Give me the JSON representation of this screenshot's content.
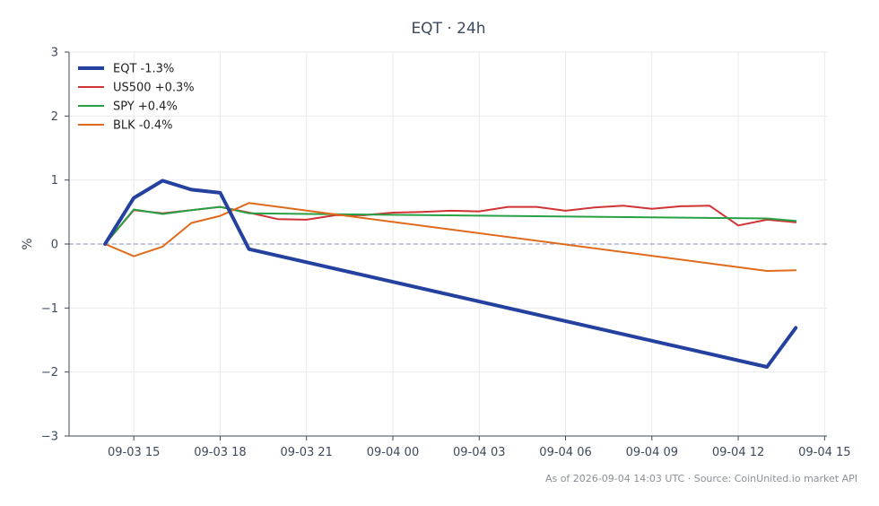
{
  "chart_data": {
    "type": "line",
    "title": "EQT · 24h",
    "xlabel": "",
    "ylabel": "%",
    "ylim": [
      -3,
      3
    ],
    "xlim": [
      "2026-09-03 12:45",
      "2026-09-04 15:05"
    ],
    "x_ticks": [
      {
        "value": "2026-09-03 15:00",
        "label": "09-03 15"
      },
      {
        "value": "2026-09-03 18:00",
        "label": "09-03 18"
      },
      {
        "value": "2026-09-03 21:00",
        "label": "09-03 21"
      },
      {
        "value": "2026-09-04 00:00",
        "label": "09-04 00"
      },
      {
        "value": "2026-09-04 03:00",
        "label": "09-04 03"
      },
      {
        "value": "2026-09-04 06:00",
        "label": "09-04 06"
      },
      {
        "value": "2026-09-04 09:00",
        "label": "09-04 09"
      },
      {
        "value": "2026-09-04 12:00",
        "label": "09-04 12"
      },
      {
        "value": "2026-09-04 15:00",
        "label": "09-04 15"
      }
    ],
    "y_ticks": [
      {
        "value": 3,
        "label": "3"
      },
      {
        "value": 2,
        "label": "2"
      },
      {
        "value": 1,
        "label": "1"
      },
      {
        "value": 0,
        "label": "0"
      },
      {
        "value": -1,
        "label": "−1"
      },
      {
        "value": -2,
        "label": "−2"
      },
      {
        "value": -3,
        "label": "−3"
      }
    ],
    "grid": true,
    "baseline": 0,
    "legend_position": "top-left",
    "series": [
      {
        "name": "EQT -1.3%",
        "color": "#2441a0",
        "line_width": 4,
        "points": [
          {
            "x": "2026-09-03 14:00",
            "y": 0.0
          },
          {
            "x": "2026-09-03 15:00",
            "y": 0.72
          },
          {
            "x": "2026-09-03 16:00",
            "y": 0.99
          },
          {
            "x": "2026-09-03 17:00",
            "y": 0.85
          },
          {
            "x": "2026-09-03 18:00",
            "y": 0.8
          },
          {
            "x": "2026-09-03 19:00",
            "y": -0.08
          },
          {
            "x": "2026-09-04 13:00",
            "y": -1.92
          },
          {
            "x": "2026-09-04 14:00",
            "y": -1.31
          }
        ]
      },
      {
        "name": "US500 +0.3%",
        "color": "#d03434",
        "line_width": 2,
        "points": [
          {
            "x": "2026-09-03 14:00",
            "y": 0.0
          },
          {
            "x": "2026-09-03 15:00",
            "y": 0.53
          },
          {
            "x": "2026-09-03 16:00",
            "y": 0.48
          },
          {
            "x": "2026-09-03 17:00",
            "y": 0.53
          },
          {
            "x": "2026-09-03 18:00",
            "y": 0.58
          },
          {
            "x": "2026-09-03 19:00",
            "y": 0.49
          },
          {
            "x": "2026-09-03 20:00",
            "y": 0.39
          },
          {
            "x": "2026-09-03 21:00",
            "y": 0.38
          },
          {
            "x": "2026-09-03 22:00",
            "y": 0.45
          },
          {
            "x": "2026-09-03 23:00",
            "y": 0.45
          },
          {
            "x": "2026-09-04 00:00",
            "y": 0.49
          },
          {
            "x": "2026-09-04 01:00",
            "y": 0.5
          },
          {
            "x": "2026-09-04 02:00",
            "y": 0.52
          },
          {
            "x": "2026-09-04 03:00",
            "y": 0.51
          },
          {
            "x": "2026-09-04 04:00",
            "y": 0.58
          },
          {
            "x": "2026-09-04 05:00",
            "y": 0.58
          },
          {
            "x": "2026-09-04 06:00",
            "y": 0.52
          },
          {
            "x": "2026-09-04 07:00",
            "y": 0.57
          },
          {
            "x": "2026-09-04 08:00",
            "y": 0.6
          },
          {
            "x": "2026-09-04 09:00",
            "y": 0.55
          },
          {
            "x": "2026-09-04 10:00",
            "y": 0.59
          },
          {
            "x": "2026-09-04 11:00",
            "y": 0.6
          },
          {
            "x": "2026-09-04 12:00",
            "y": 0.29
          },
          {
            "x": "2026-09-04 13:00",
            "y": 0.38
          },
          {
            "x": "2026-09-04 14:00",
            "y": 0.34
          }
        ]
      },
      {
        "name": "SPY +0.4%",
        "color": "#27a046",
        "line_width": 2,
        "points": [
          {
            "x": "2026-09-03 14:00",
            "y": 0.0
          },
          {
            "x": "2026-09-03 15:00",
            "y": 0.54
          },
          {
            "x": "2026-09-03 16:00",
            "y": 0.47
          },
          {
            "x": "2026-09-03 17:00",
            "y": 0.53
          },
          {
            "x": "2026-09-03 18:00",
            "y": 0.58
          },
          {
            "x": "2026-09-03 19:00",
            "y": 0.48
          },
          {
            "x": "2026-09-04 13:00",
            "y": 0.4
          },
          {
            "x": "2026-09-04 14:00",
            "y": 0.36
          }
        ]
      },
      {
        "name": "BLK -0.4%",
        "color": "#e06a1c",
        "line_width": 2,
        "points": [
          {
            "x": "2026-09-03 14:00",
            "y": 0.0
          },
          {
            "x": "2026-09-03 15:00",
            "y": -0.19
          },
          {
            "x": "2026-09-03 16:00",
            "y": -0.04
          },
          {
            "x": "2026-09-03 17:00",
            "y": 0.33
          },
          {
            "x": "2026-09-03 18:00",
            "y": 0.44
          },
          {
            "x": "2026-09-03 19:00",
            "y": 0.64
          },
          {
            "x": "2026-09-04 13:00",
            "y": -0.42
          },
          {
            "x": "2026-09-04 14:00",
            "y": -0.41
          }
        ]
      }
    ]
  },
  "footer": {
    "text": "As of 2026-09-04 14:03 UTC · Source: CoinUnited.io market API"
  },
  "colors": {
    "axis": "#3d4a5c",
    "grid": "#e8eaee",
    "baseline": "#8b95b5"
  }
}
